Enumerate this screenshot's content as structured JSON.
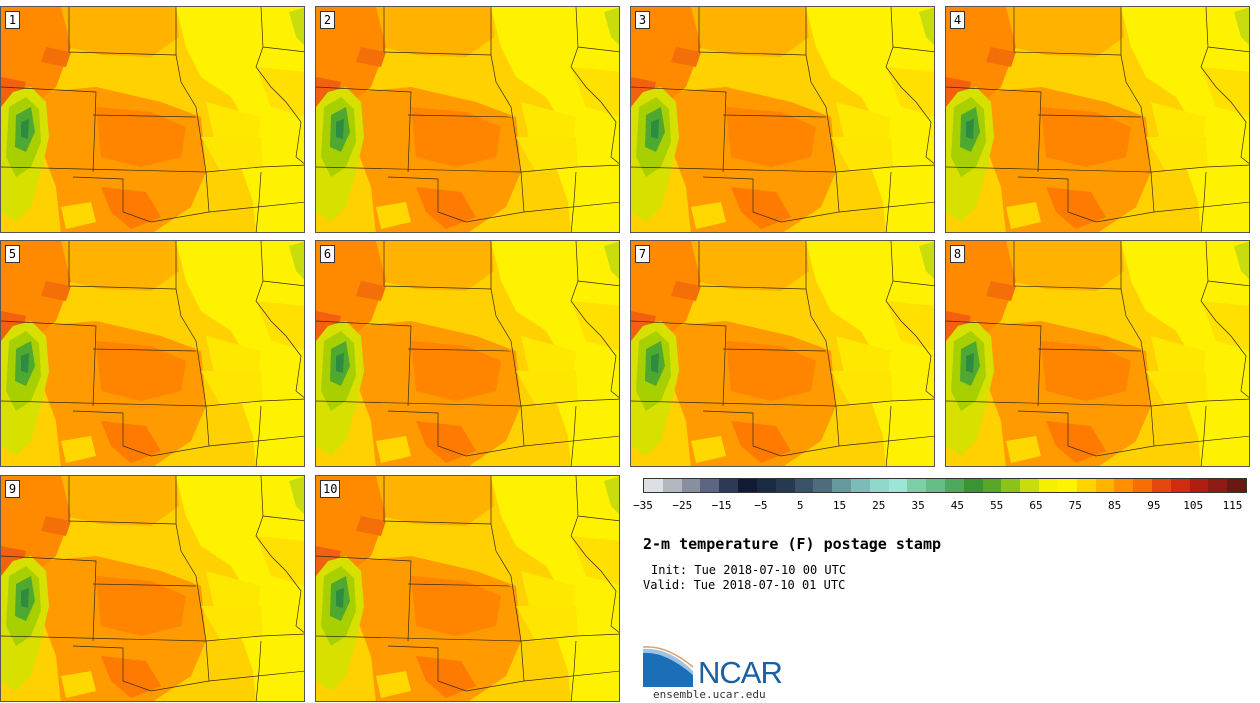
{
  "panels": [
    {
      "label": "1"
    },
    {
      "label": "2"
    },
    {
      "label": "3"
    },
    {
      "label": "4"
    },
    {
      "label": "5"
    },
    {
      "label": "6"
    },
    {
      "label": "7"
    },
    {
      "label": "8"
    },
    {
      "label": "9"
    },
    {
      "label": "10"
    }
  ],
  "colorbar": {
    "colors": [
      "#dcdfe3",
      "#b3b7bf",
      "#8a8fa0",
      "#5e6580",
      "#2e3a55",
      "#111b33",
      "#1a2a40",
      "#25394f",
      "#3a5366",
      "#4e6c7c",
      "#679a9e",
      "#7bbcb6",
      "#90d8cc",
      "#9be6d6",
      "#7ecfa8",
      "#66bd86",
      "#4ea85e",
      "#3a9432",
      "#5aa626",
      "#8cc21a",
      "#c8dc0e",
      "#f4f000",
      "#fff400",
      "#ffd300",
      "#ffb400",
      "#ff8f00",
      "#f86e06",
      "#e4480c",
      "#cf2c10",
      "#b01e12",
      "#8f1a14",
      "#6a1812"
    ],
    "tick_labels": [
      "−35",
      "−25",
      "−15",
      "−5",
      "5",
      "15",
      "25",
      "35",
      "45",
      "55",
      "65",
      "75",
      "85",
      "95",
      "105",
      "115"
    ]
  },
  "title": "2-m temperature (F) postage stamp",
  "init": "Init: Tue 2018-07-10 00 UTC",
  "valid": "Valid: Tue 2018-07-10 01 UTC",
  "logo": {
    "text": "NCAR",
    "url": "ensemble.ucar.edu"
  }
}
